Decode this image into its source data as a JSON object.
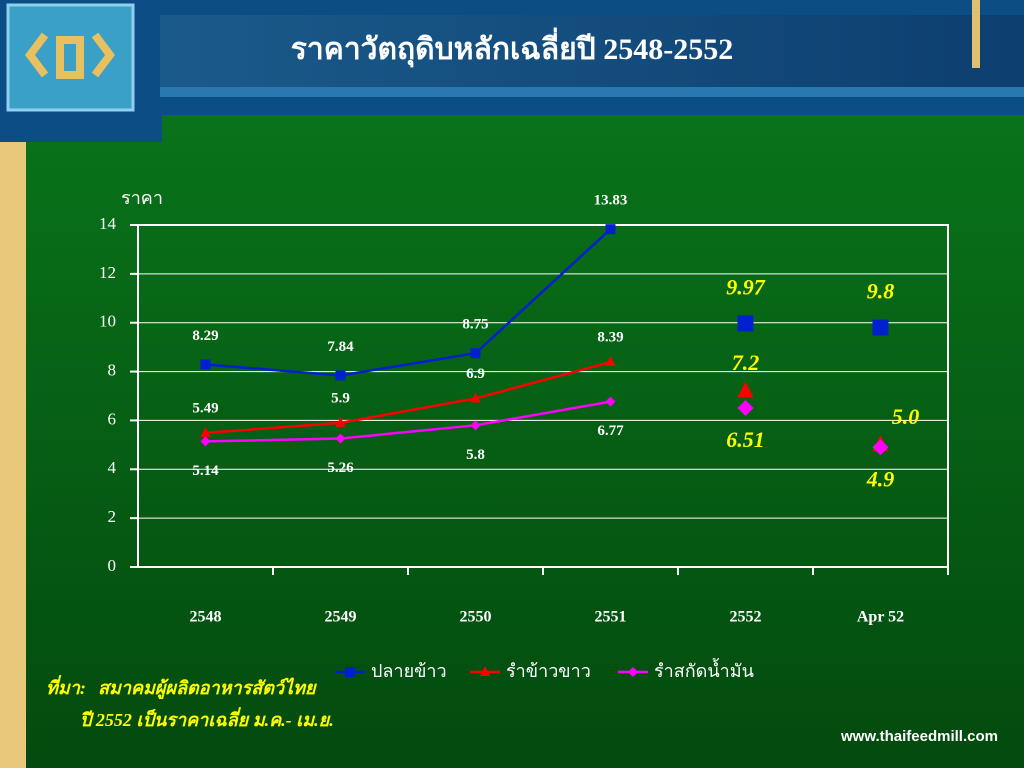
{
  "header": {
    "title": "ราคาวัตถุดิบหลักเฉลี่ยปี 2548-2552"
  },
  "chart_data": {
    "type": "line",
    "y_label": "ราคา",
    "categories": [
      "2548",
      "2549",
      "2550",
      "2551",
      "2552",
      "Apr 52"
    ],
    "ylim": [
      0,
      14
    ],
    "yticks": [
      0,
      2,
      4,
      6,
      8,
      10,
      12,
      14
    ],
    "grid": true,
    "series": [
      {
        "name": "ปลายข้าว",
        "color": "#0020d0",
        "values": [
          8.29,
          7.84,
          8.75,
          13.83,
          null,
          null
        ],
        "highlights": [
          null,
          null,
          null,
          null,
          9.97,
          9.8
        ]
      },
      {
        "name": "รำข้าวขาว",
        "color": "#ff0000",
        "values": [
          5.49,
          5.9,
          6.9,
          8.39,
          null,
          null
        ],
        "highlights": [
          null,
          null,
          null,
          null,
          7.2,
          5.0
        ],
        "highlight_labels": [
          null,
          null,
          null,
          null,
          "7.2",
          "5.0"
        ]
      },
      {
        "name": "รำสกัดน้ำมัน",
        "color": "#ff00ff",
        "values": [
          5.14,
          5.26,
          5.8,
          6.77,
          null,
          null
        ],
        "highlights": [
          null,
          null,
          null,
          null,
          6.51,
          4.9
        ]
      }
    ]
  },
  "footer": {
    "source_label": "ที่มา:",
    "source": "สมาคมผู้ผลิตอาหารสัตว์ไทย",
    "note": "ปี 2552 เป็นราคาเฉลี่ย ม.ค.- เม.ย.",
    "website": "www.thaifeedmill.com"
  }
}
